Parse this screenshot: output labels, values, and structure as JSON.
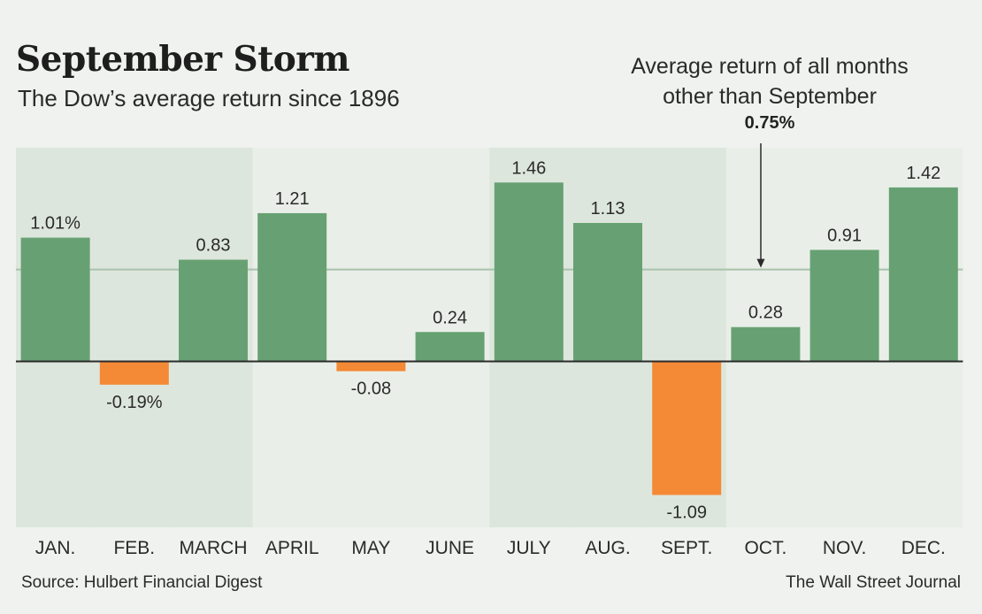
{
  "header": {
    "title": "September Storm",
    "subtitle": "The Dow’s average return since 1896"
  },
  "annotation": {
    "label_line1": "Average return of all months",
    "label_line2": "other than September",
    "value_label": "0.75%"
  },
  "footer": {
    "source": "Source: Hulbert Financial Digest",
    "credit": "The Wall Street Journal"
  },
  "colors": {
    "positive": "#67a173",
    "negative": "#f48a35",
    "band": "#dde6dc",
    "background": "#eff2ee",
    "reference_line": "#a9c2ab"
  },
  "chart_data": {
    "type": "bar",
    "categories": [
      "JAN.",
      "FEB.",
      "MARCH",
      "APRIL",
      "MAY",
      "JUNE",
      "JULY",
      "AUG.",
      "SEPT.",
      "OCT.",
      "NOV.",
      "DEC."
    ],
    "values": [
      1.01,
      -0.19,
      0.83,
      1.21,
      -0.08,
      0.24,
      1.46,
      1.13,
      -1.09,
      0.28,
      0.91,
      1.42
    ],
    "value_labels": [
      "1.01%",
      "-0.19%",
      "0.83",
      "1.21",
      "-0.08",
      "0.24",
      "1.46",
      "1.13",
      "-1.09",
      "0.28",
      "0.91",
      "1.42"
    ],
    "reference_line": {
      "value": 0.75,
      "label": "0.75%"
    },
    "shaded_categories": [
      "JAN.",
      "FEB.",
      "MARCH",
      "JULY",
      "AUG.",
      "SEPT."
    ],
    "title": "September Storm",
    "subtitle": "The Dow’s average return since 1896",
    "ylim": [
      -1.3,
      1.72
    ]
  }
}
